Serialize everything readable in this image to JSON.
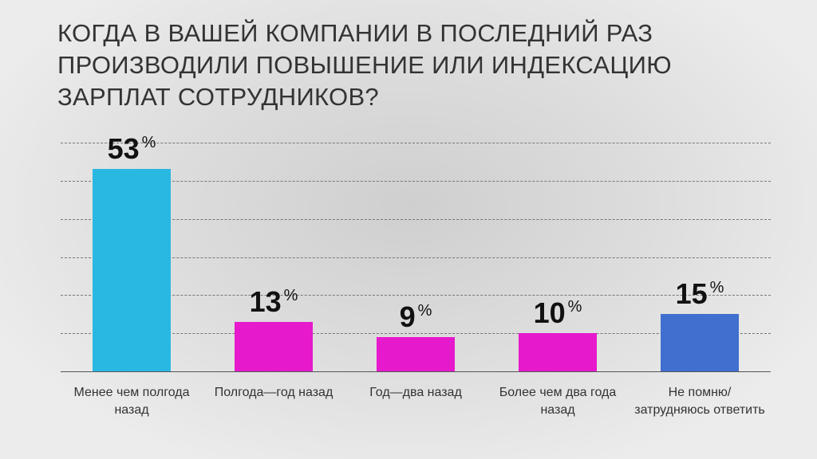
{
  "chart_data": {
    "type": "bar",
    "title": "КОГДА В ВАШЕЙ КОМПАНИИ В ПОСЛЕДНИЙ РАЗ ПРОИЗВОДИЛИ ПОВЫШЕНИЕ ИЛИ ИНДЕКСАЦИЮ ЗАРПЛАТ СОТРУДНИКОВ?",
    "categories": [
      "Менее чем полгода назад",
      "Полгода—год назад",
      "Год—два назад",
      "Более чем два года назад",
      "Не помню/затрудняюсь ответить"
    ],
    "values": [
      53,
      13,
      9,
      10,
      15
    ],
    "unit": "%",
    "colors": [
      "#29b8e2",
      "#e619cc",
      "#e619cc",
      "#e619cc",
      "#3f6fcf"
    ],
    "ylim": [
      0,
      60
    ],
    "yticks": [
      0,
      10,
      20,
      30,
      40,
      50,
      60
    ],
    "grid": true
  }
}
